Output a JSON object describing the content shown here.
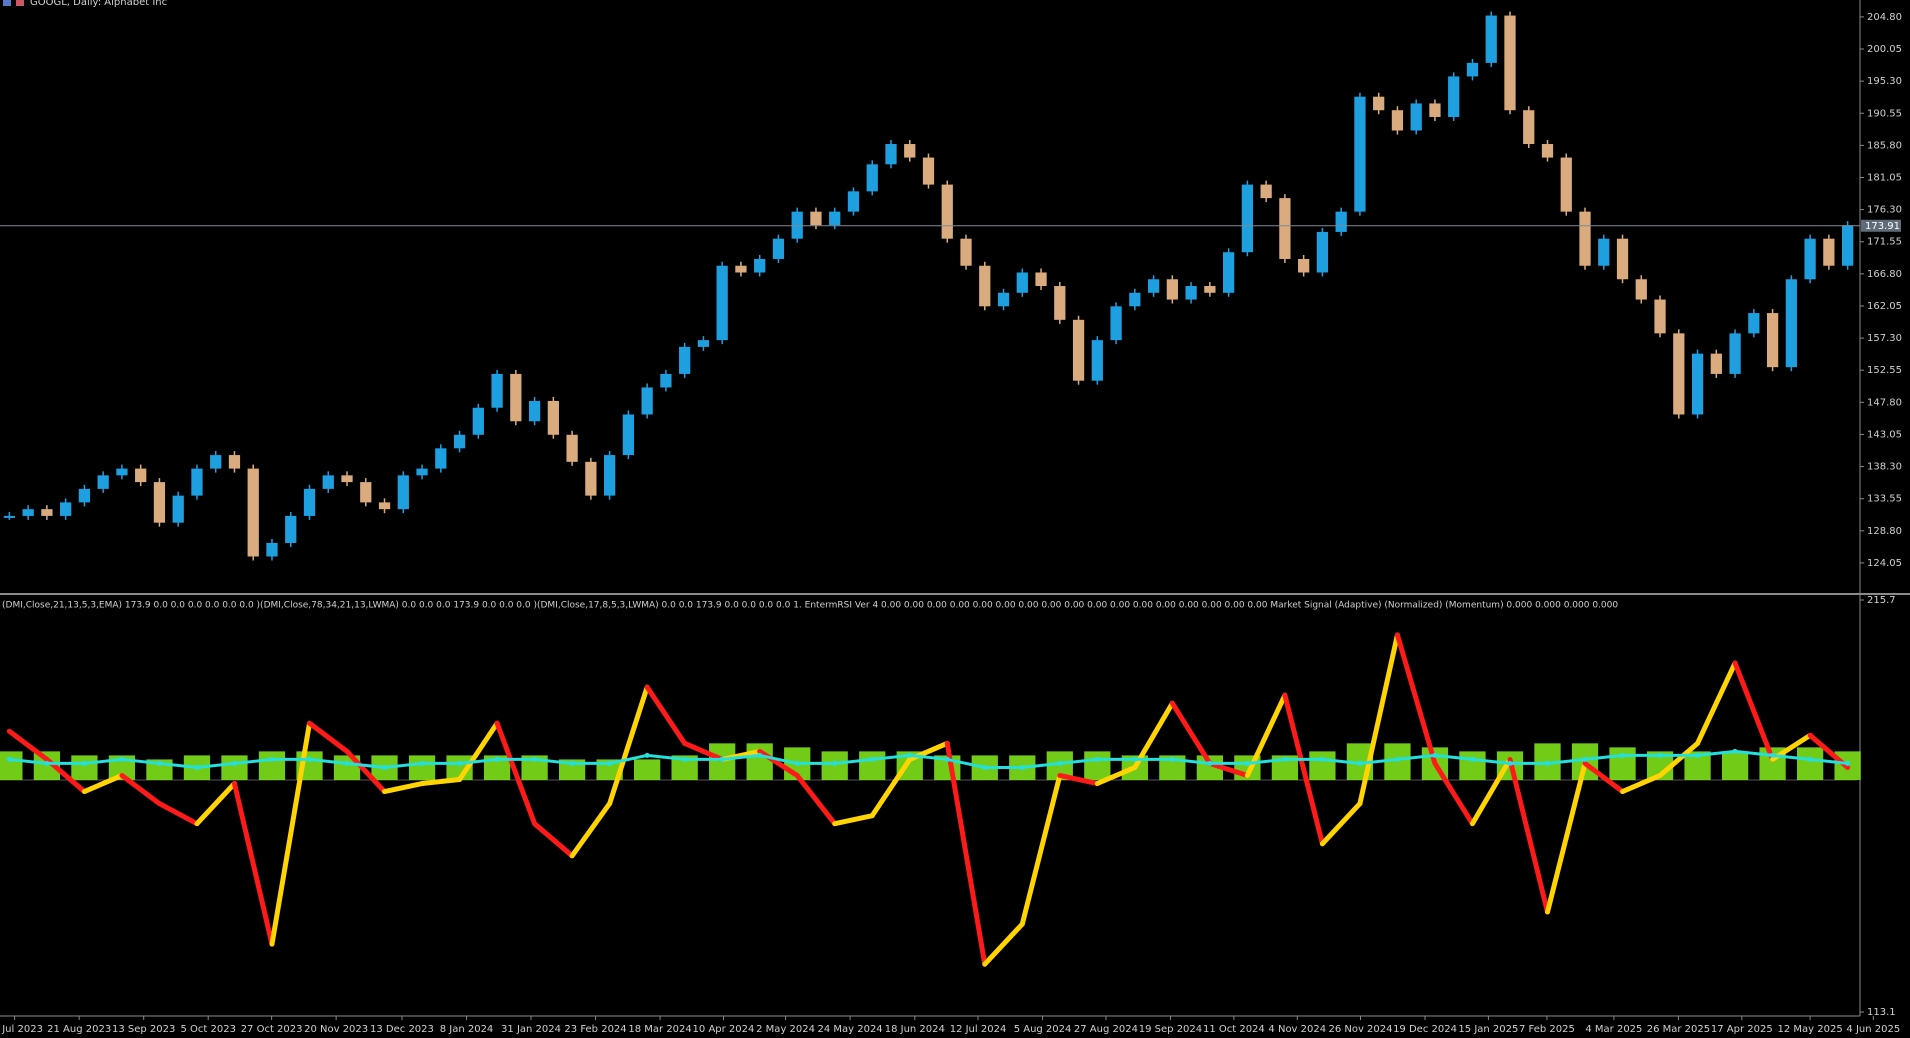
{
  "chart_data": [
    {
      "type": "candlestick",
      "title": "GOOGL, Daily:  Alphabet Inc",
      "values": [
        131,
        132,
        131,
        133,
        135,
        137,
        138,
        136,
        130,
        134,
        138,
        140,
        138,
        125,
        127,
        131,
        135,
        137,
        136,
        133,
        132,
        137,
        138,
        141,
        143,
        147,
        152,
        145,
        148,
        143,
        139,
        134,
        140,
        146,
        150,
        152,
        156,
        157,
        168,
        167,
        169,
        172,
        176,
        174,
        176,
        179,
        183,
        186,
        184,
        180,
        172,
        168,
        162,
        164,
        167,
        165,
        160,
        151,
        157,
        162,
        164,
        166,
        163,
        165,
        164,
        170,
        180,
        178,
        169,
        167,
        173,
        176,
        193,
        191,
        188,
        192,
        190,
        196,
        198,
        205,
        191,
        186,
        184,
        176,
        168,
        172,
        166,
        163,
        158,
        146,
        155,
        152,
        158,
        161,
        153,
        166,
        172,
        168,
        174
      ],
      "up_color": "#1e9fe0",
      "down_color": "#d9ab7e",
      "last_price": 173.91,
      "ylim": [
        119.6,
        207.3
      ],
      "yticks": [
        {
          "value": 204.8,
          "label": "204.80"
        },
        200.05,
        {
          "value": 195.3,
          "label": "195.30"
        },
        190.55,
        {
          "value": 185.8,
          "label": "185.80"
        },
        181.05,
        {
          "value": 176.3,
          "label": "176.30"
        },
        171.55,
        {
          "value": 166.8,
          "label": "166.80"
        },
        162.05,
        {
          "value": 157.3,
          "label": "157.30"
        },
        152.55,
        {
          "value": 147.8,
          "label": "147.80"
        },
        143.05,
        {
          "value": 138.3,
          "label": "138.30"
        },
        133.55,
        {
          "value": 128.8,
          "label": "128.80"
        },
        124.05
      ],
      "xlim": [
        -0.5,
        98.5
      ],
      "xticks": [
        {
          "value": 0.28,
          "label": "28 Jul 2023"
        },
        {
          "value": 3.72,
          "label": "21 Aug 2023"
        },
        {
          "value": 7.16,
          "label": "13 Sep 2023"
        },
        {
          "value": 10.6,
          "label": "5 Oct 2023"
        },
        {
          "value": 13.98,
          "label": "27 Oct 2023"
        },
        {
          "value": 17.42,
          "label": "20 Nov 2023"
        },
        {
          "value": 20.93,
          "label": "13 Dec 2023"
        },
        {
          "value": 24.37,
          "label": "8 Jan 2024"
        },
        {
          "value": 27.81,
          "label": "31 Jan 2024"
        },
        {
          "value": 31.25,
          "label": "23 Feb 2024"
        },
        {
          "value": 34.69,
          "label": "18 Mar 2024"
        },
        {
          "value": 38.07,
          "label": "10 Apr 2024"
        },
        {
          "value": 41.38,
          "label": "2 May 2024"
        },
        {
          "value": 44.82,
          "label": "24 May 2024"
        },
        {
          "value": 48.27,
          "label": "18 Jun 2024"
        },
        {
          "value": 51.64,
          "label": "12 Jul 2024"
        },
        {
          "value": 55.08,
          "label": "5 Aug 2024"
        },
        {
          "value": 58.46,
          "label": "27 Aug 2024"
        },
        {
          "value": 61.9,
          "label": "19 Sep 2024"
        },
        {
          "value": 65.28,
          "label": "11 Oct 2024"
        },
        {
          "value": 68.66,
          "label": "4 Nov 2024"
        },
        {
          "value": 72.03,
          "label": "26 Nov 2024"
        },
        {
          "value": 75.47,
          "label": "19 Dec 2024"
        },
        {
          "value": 78.85,
          "label": "15 Jan 2025"
        },
        {
          "value": 81.97,
          "label": "7 Feb 2025"
        },
        {
          "value": 85.54,
          "label": "4 Mar 2025"
        },
        {
          "value": 88.98,
          "label": "26 Mar 2025"
        },
        {
          "value": 92.36,
          "label": "17 Apr 2025"
        },
        {
          "value": 96,
          "label": "12 May 2025"
        },
        {
          "value": 99.37,
          "label": "4 Jun 2025"
        }
      ]
    },
    {
      "type": "line",
      "subtitle": "(DMI,Close,21,13,5,3,EMA) 173.9 0.0 0.0 0.0 0.0 0.0 0.0 )(DMI,Close,78,34,21,13,LWMA) 0.0 0.0 0.0 173.9 0.0 0.0 0.0 )(DMI,Close,17,8,5,3,LWMA) 0.0 0.0 173.9 0.0 0.0 0.0 0.0 1. EntermRSI Ver 4 0.00 0.00 0.00 0.00 0.00 0.00 0.00 0.00 0.00 0.00 0.00 0.00 0.00 0.00 0.00 0.00 0.00 Market Signal (Adaptive) (Normalized) (Momentum) 0.000 0.000 0.000 0.000",
      "ylim": [
        113.1,
        215.7
      ],
      "yticks": [
        215.7,
        113.1
      ],
      "x": [
        0,
        2,
        4,
        6,
        8,
        10,
        12,
        14,
        16,
        18,
        20,
        22,
        24,
        26,
        28,
        30,
        32,
        34,
        36,
        38,
        40,
        42,
        44,
        46,
        48,
        50,
        52,
        54,
        56,
        58,
        60,
        62,
        64,
        66,
        68,
        70,
        72,
        74,
        76,
        78,
        80,
        82,
        84,
        86,
        88,
        90,
        92,
        94,
        96,
        98
      ],
      "histogram": {
        "color": "#7ee21a",
        "values": [
          178,
          178,
          177,
          177,
          176,
          177,
          177,
          178,
          178,
          177,
          177,
          177,
          177,
          177,
          177,
          176,
          176,
          176,
          177,
          180,
          180,
          179,
          178,
          178,
          178,
          177,
          177,
          177,
          178,
          178,
          177,
          177,
          177,
          177,
          177,
          178,
          180,
          180,
          179,
          178,
          178,
          180,
          180,
          179,
          178,
          178,
          178,
          179,
          179,
          178
        ]
      },
      "series": [
        {
          "color": "#ffd400",
          "falling_color": "#ff1a1a",
          "values": [
            183,
            176,
            168,
            172,
            165,
            160,
            170,
            130,
            185,
            178,
            168,
            170,
            171,
            185,
            160,
            152,
            165,
            194,
            180,
            176,
            178,
            172,
            160,
            162,
            176,
            180,
            125,
            135,
            172,
            170,
            174,
            190,
            175,
            172,
            192,
            155,
            165,
            207,
            175,
            160,
            176,
            138,
            175,
            168,
            172,
            180,
            200,
            176,
            182,
            174
          ]
        },
        {
          "color": "#22e0e0",
          "values": [
            176,
            175,
            175,
            176,
            175,
            174,
            175,
            176,
            176,
            175,
            174,
            175,
            175,
            176,
            176,
            175,
            175,
            177,
            176,
            176,
            177,
            175,
            175,
            176,
            177,
            176,
            174,
            174,
            175,
            176,
            176,
            176,
            175,
            175,
            176,
            176,
            175,
            176,
            177,
            176,
            175,
            175,
            176,
            177,
            177,
            177,
            178,
            177,
            176,
            175
          ]
        }
      ]
    }
  ]
}
